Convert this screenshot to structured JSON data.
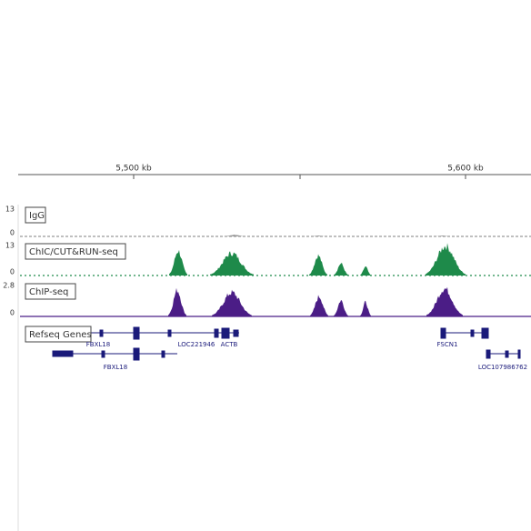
{
  "ruler": {
    "ticks": [
      "5,500 kb",
      "5,600 kb"
    ]
  },
  "tracks": [
    {
      "name": "IgG",
      "max": 13,
      "min": 0
    },
    {
      "name": "ChIC/CUT&RUN-seq",
      "max": 13,
      "min": 0
    },
    {
      "name": "ChIP-seq",
      "max": 2.8,
      "min": 0
    }
  ],
  "gene_track": "Refseq Genes",
  "genes": [
    "FBXL18",
    "LOC221946",
    "ACTB",
    "FSCN1",
    "FBXL18",
    "LOC107986762"
  ]
}
